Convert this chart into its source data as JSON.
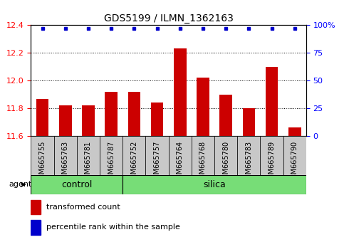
{
  "title": "GDS5199 / ILMN_1362163",
  "samples": [
    "GSM665755",
    "GSM665763",
    "GSM665781",
    "GSM665787",
    "GSM665752",
    "GSM665757",
    "GSM665764",
    "GSM665768",
    "GSM665780",
    "GSM665783",
    "GSM665789",
    "GSM665790"
  ],
  "transformed_counts": [
    11.87,
    11.82,
    11.82,
    11.92,
    11.92,
    11.84,
    12.23,
    12.02,
    11.9,
    11.8,
    12.1,
    11.66
  ],
  "n_control": 4,
  "n_silica": 8,
  "bar_color": "#CC0000",
  "dot_color": "#0000CC",
  "ylim_left": [
    11.6,
    12.4
  ],
  "ylim_right": [
    0,
    100
  ],
  "yticks_left": [
    11.6,
    11.8,
    12.0,
    12.2,
    12.4
  ],
  "yticks_right": [
    0,
    25,
    50,
    75,
    100
  ],
  "plot_bg_color": "#ffffff",
  "tick_box_color": "#c8c8c8",
  "green_color": "#77DD77",
  "agent_label": "agent",
  "control_label": "control",
  "silica_label": "silica",
  "legend_tc": "transformed count",
  "legend_pr": "percentile rank within the sample",
  "title_fontsize": 10,
  "tick_fontsize": 7,
  "label_fontsize": 9,
  "legend_fontsize": 8
}
